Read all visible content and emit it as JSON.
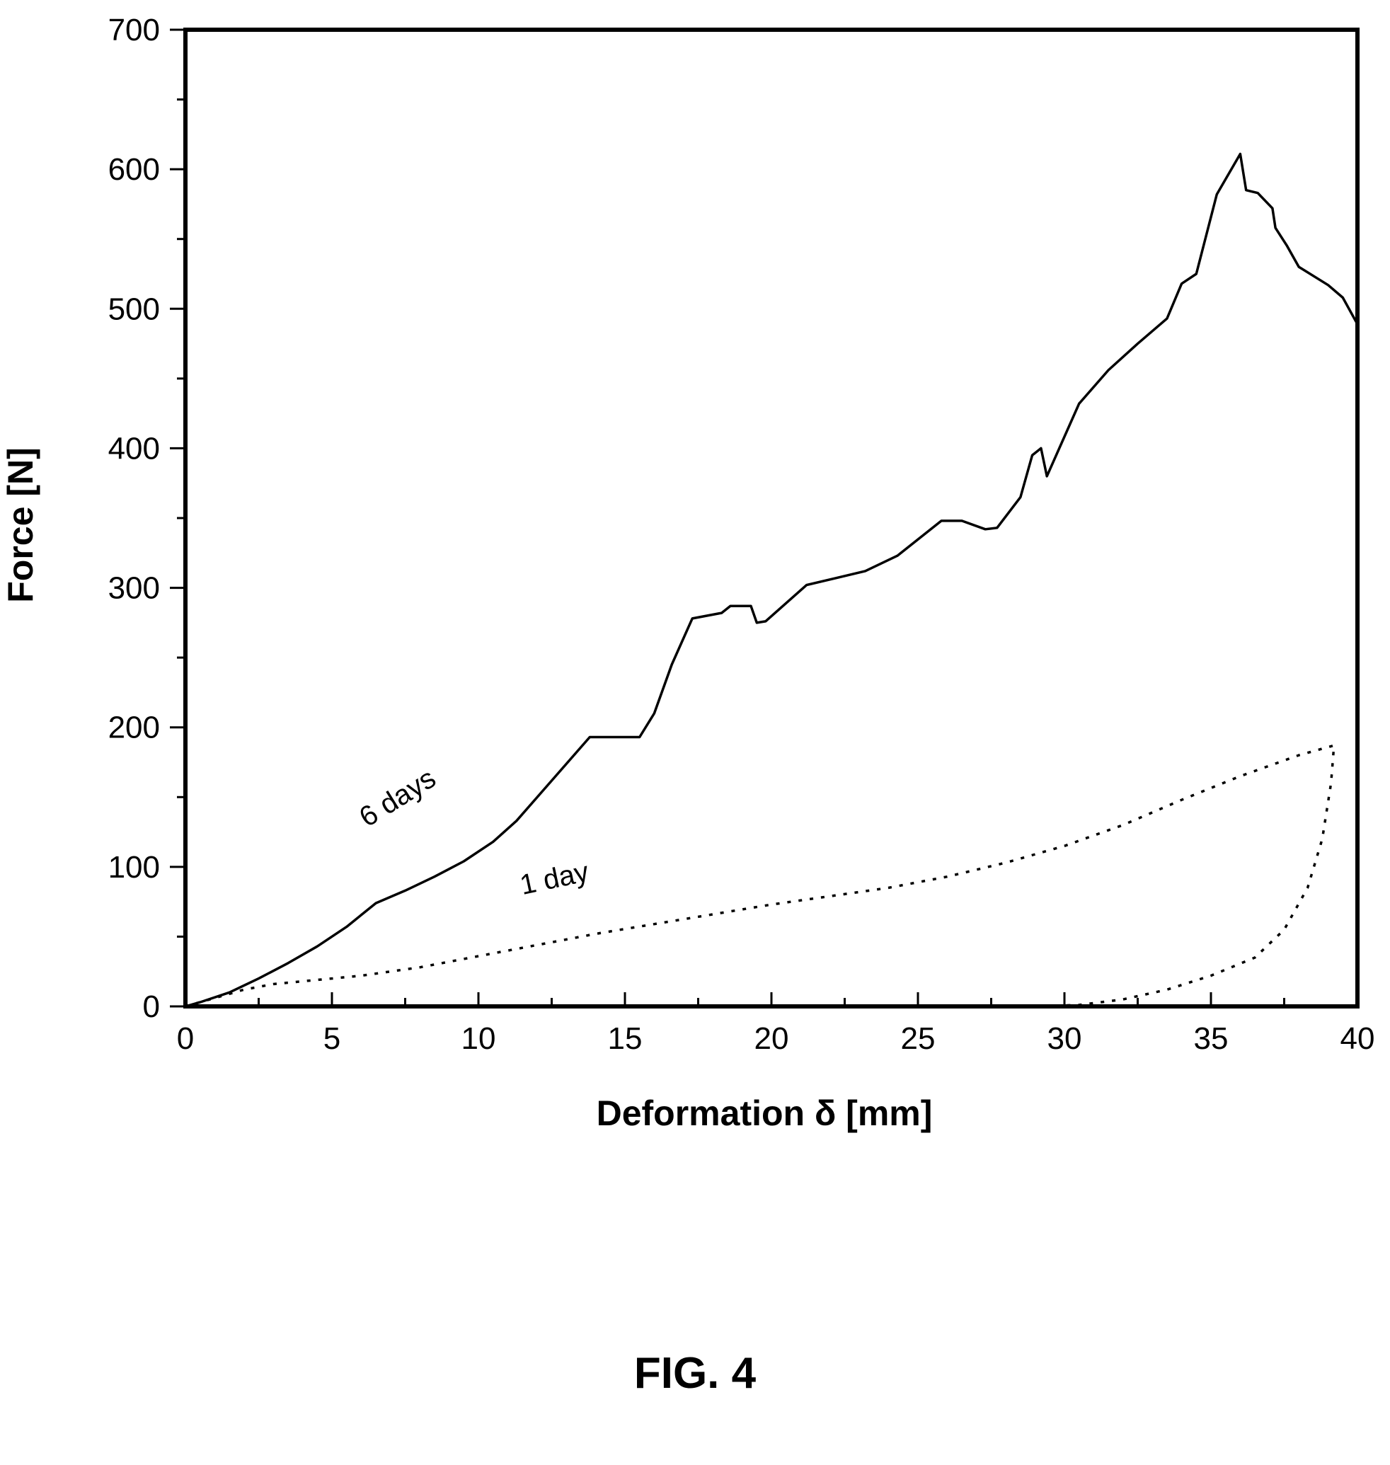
{
  "figure_label": "FIG. 4",
  "chart_data": {
    "type": "line",
    "xlabel": "Deformation δ [mm]",
    "ylabel": "Force [N]",
    "xlim": [
      0,
      40
    ],
    "ylim": [
      0,
      700
    ],
    "x_ticks": [
      0,
      5,
      10,
      15,
      20,
      25,
      30,
      35,
      40
    ],
    "y_ticks": [
      0,
      100,
      200,
      300,
      400,
      500,
      600,
      700
    ],
    "grid": false,
    "legend": "none",
    "annotations": [
      {
        "text": "6 days",
        "x": 6.2,
        "y": 128
      },
      {
        "text": "1 day",
        "x": 11.5,
        "y": 80
      }
    ],
    "series": [
      {
        "name": "6 days",
        "style": "solid",
        "points": [
          [
            0,
            0
          ],
          [
            0.5,
            3
          ],
          [
            1.5,
            10
          ],
          [
            2.5,
            20
          ],
          [
            3.5,
            31
          ],
          [
            4.5,
            43
          ],
          [
            5.5,
            57
          ],
          [
            6.5,
            74
          ],
          [
            7.5,
            83
          ],
          [
            8.5,
            93
          ],
          [
            9.5,
            104
          ],
          [
            10.5,
            118
          ],
          [
            11.3,
            133
          ],
          [
            12.3,
            157
          ],
          [
            13.8,
            193
          ],
          [
            15.5,
            193
          ],
          [
            16.0,
            210
          ],
          [
            16.6,
            245
          ],
          [
            17.3,
            278
          ],
          [
            18.3,
            282
          ],
          [
            18.6,
            287
          ],
          [
            19.3,
            287
          ],
          [
            19.5,
            275
          ],
          [
            19.8,
            276
          ],
          [
            21.2,
            302
          ],
          [
            22.2,
            307
          ],
          [
            23.2,
            312
          ],
          [
            24.3,
            323
          ],
          [
            25.8,
            348
          ],
          [
            26.5,
            348
          ],
          [
            27.3,
            342
          ],
          [
            27.7,
            343
          ],
          [
            28.5,
            365
          ],
          [
            28.9,
            395
          ],
          [
            29.2,
            400
          ],
          [
            29.4,
            380
          ],
          [
            30.5,
            432
          ],
          [
            31.5,
            456
          ],
          [
            32.5,
            475
          ],
          [
            33.5,
            493
          ],
          [
            34.0,
            518
          ],
          [
            34.5,
            525
          ],
          [
            35.2,
            582
          ],
          [
            36.0,
            611
          ],
          [
            36.2,
            585
          ],
          [
            36.6,
            583
          ],
          [
            37.1,
            572
          ],
          [
            37.2,
            558
          ],
          [
            37.6,
            545
          ],
          [
            38.0,
            530
          ],
          [
            39.0,
            517
          ],
          [
            39.5,
            508
          ],
          [
            40.0,
            489
          ]
        ]
      },
      {
        "name": "1 day",
        "style": "dotted",
        "points": [
          [
            0,
            0
          ],
          [
            1,
            6
          ],
          [
            2,
            12
          ],
          [
            3,
            16
          ],
          [
            4,
            18
          ],
          [
            5,
            20
          ],
          [
            6,
            22
          ],
          [
            7,
            25
          ],
          [
            8,
            28
          ],
          [
            10,
            36
          ],
          [
            12,
            44
          ],
          [
            14,
            52
          ],
          [
            16,
            59
          ],
          [
            18,
            66
          ],
          [
            20,
            73
          ],
          [
            22,
            79
          ],
          [
            24,
            85
          ],
          [
            26,
            93
          ],
          [
            28,
            103
          ],
          [
            30,
            115
          ],
          [
            32,
            130
          ],
          [
            34,
            148
          ],
          [
            36,
            165
          ],
          [
            38,
            180
          ],
          [
            39.2,
            187
          ],
          [
            39.1,
            160
          ],
          [
            38.8,
            120
          ],
          [
            38.3,
            85
          ],
          [
            37.5,
            55
          ],
          [
            36.5,
            35
          ],
          [
            35,
            22
          ],
          [
            33.5,
            12
          ],
          [
            32,
            5
          ],
          [
            30.5,
            1
          ],
          [
            29,
            0
          ]
        ]
      }
    ]
  }
}
